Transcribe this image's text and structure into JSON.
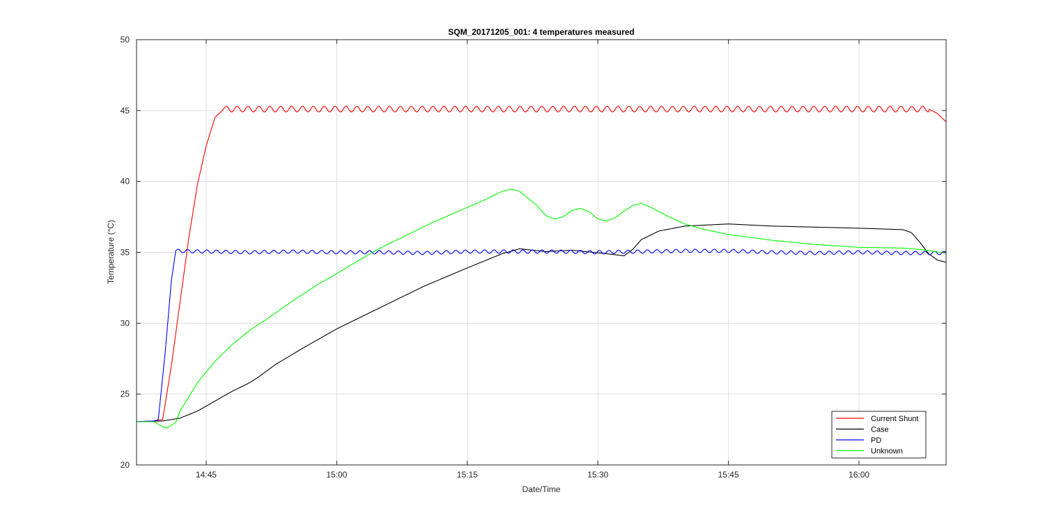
{
  "chart_data": {
    "type": "line",
    "title": "SQM_20171205_001: 4 temperatures measured",
    "xlabel": "Date/Time",
    "ylabel": "Temperature (°C)",
    "x_unit": "time of day (HH:MM)",
    "xlim": [
      "14:37",
      "16:10"
    ],
    "ylim": [
      20,
      50
    ],
    "x_ticks": [
      "14:45",
      "15:00",
      "15:15",
      "15:30",
      "15:45",
      "16:00"
    ],
    "y_ticks": [
      20,
      25,
      30,
      35,
      40,
      45,
      50
    ],
    "grid": true,
    "legend_position": "bottom-right",
    "series": [
      {
        "name": "Current Shunt",
        "color": "#ff0000",
        "oscillation": {
          "from": "14:47",
          "to": "16:08",
          "amplitude": 0.2,
          "period_min": 1.25
        },
        "points": [
          [
            "14:37",
            23.05
          ],
          [
            "14:39",
            23.1
          ],
          [
            "14:40",
            23.2
          ],
          [
            "14:41",
            27.0
          ],
          [
            "14:42",
            31.5
          ],
          [
            "14:43",
            36.0
          ],
          [
            "14:44",
            39.8
          ],
          [
            "14:45",
            42.5
          ],
          [
            "14:46",
            44.5
          ],
          [
            "14:47",
            45.1
          ],
          [
            "15:00",
            45.1
          ],
          [
            "15:15",
            45.1
          ],
          [
            "15:30",
            45.1
          ],
          [
            "15:45",
            45.1
          ],
          [
            "16:00",
            45.1
          ],
          [
            "16:08",
            45.1
          ],
          [
            "16:09",
            44.8
          ],
          [
            "16:10",
            44.2
          ]
        ]
      },
      {
        "name": "Case",
        "color": "#000000",
        "points": [
          [
            "14:37",
            23.05
          ],
          [
            "14:40",
            23.1
          ],
          [
            "14:42",
            23.3
          ],
          [
            "14:44",
            23.8
          ],
          [
            "14:46",
            24.5
          ],
          [
            "14:48",
            25.2
          ],
          [
            "14:50",
            25.8
          ],
          [
            "14:51",
            26.2
          ],
          [
            "14:53",
            27.1
          ],
          [
            "14:56",
            28.2
          ],
          [
            "15:00",
            29.6
          ],
          [
            "15:05",
            31.1
          ],
          [
            "15:10",
            32.6
          ],
          [
            "15:15",
            33.9
          ],
          [
            "15:19",
            34.9
          ],
          [
            "15:21",
            35.25
          ],
          [
            "15:24",
            35.05
          ],
          [
            "15:27",
            35.15
          ],
          [
            "15:31",
            34.9
          ],
          [
            "15:33",
            34.75
          ],
          [
            "15:34",
            35.2
          ],
          [
            "15:35",
            35.9
          ],
          [
            "15:37",
            36.5
          ],
          [
            "15:40",
            36.85
          ],
          [
            "15:45",
            37.0
          ],
          [
            "15:50",
            36.85
          ],
          [
            "16:00",
            36.7
          ],
          [
            "16:05",
            36.6
          ],
          [
            "16:06",
            36.4
          ],
          [
            "16:07",
            35.7
          ],
          [
            "16:08",
            34.9
          ],
          [
            "16:09",
            34.45
          ],
          [
            "16:10",
            34.3
          ]
        ]
      },
      {
        "name": "PD",
        "color": "#0000ff",
        "oscillation": {
          "from": "14:41.5",
          "to": "16:10",
          "amplitude": 0.12,
          "period_min": 1.1
        },
        "points": [
          [
            "14:37",
            23.05
          ],
          [
            "14:39",
            23.1
          ],
          [
            "14:39.5",
            23.2
          ],
          [
            "14:40.3",
            28.0
          ],
          [
            "14:41",
            33.0
          ],
          [
            "14:41.5",
            35.1
          ],
          [
            "14:45",
            35.05
          ],
          [
            "14:50",
            35.0
          ],
          [
            "14:55",
            35.05
          ],
          [
            "15:00",
            35.0
          ],
          [
            "15:05",
            35.0
          ],
          [
            "15:10",
            34.95
          ],
          [
            "15:15",
            35.05
          ],
          [
            "15:20",
            35.05
          ],
          [
            "15:25",
            35.05
          ],
          [
            "15:30",
            35.0
          ],
          [
            "15:35",
            35.05
          ],
          [
            "15:40",
            35.1
          ],
          [
            "15:45",
            35.1
          ],
          [
            "15:50",
            35.0
          ],
          [
            "15:55",
            34.95
          ],
          [
            "16:00",
            35.0
          ],
          [
            "16:05",
            34.95
          ],
          [
            "16:10",
            34.95
          ]
        ]
      },
      {
        "name": "Unknown",
        "color": "#00ff00",
        "points": [
          [
            "14:37",
            23.05
          ],
          [
            "14:39",
            23.05
          ],
          [
            "14:40",
            22.7
          ],
          [
            "14:40.5",
            22.6
          ],
          [
            "14:41.5",
            23.0
          ],
          [
            "14:42",
            23.8
          ],
          [
            "14:44",
            25.8
          ],
          [
            "14:46",
            27.3
          ],
          [
            "14:48",
            28.5
          ],
          [
            "14:50",
            29.5
          ],
          [
            "14:52",
            30.3
          ],
          [
            "14:55",
            31.6
          ],
          [
            "14:58",
            32.8
          ],
          [
            "15:00",
            33.5
          ],
          [
            "15:03",
            34.6
          ],
          [
            "15:05",
            35.3
          ],
          [
            "15:08",
            36.2
          ],
          [
            "15:11",
            37.1
          ],
          [
            "15:14",
            37.9
          ],
          [
            "15:17",
            38.7
          ],
          [
            "15:19",
            39.3
          ],
          [
            "15:20",
            39.45
          ],
          [
            "15:21",
            39.3
          ],
          [
            "15:22",
            38.8
          ],
          [
            "15:23",
            38.3
          ],
          [
            "15:24",
            37.6
          ],
          [
            "15:25",
            37.35
          ],
          [
            "15:26",
            37.5
          ],
          [
            "15:27",
            37.95
          ],
          [
            "15:28",
            38.1
          ],
          [
            "15:29",
            37.85
          ],
          [
            "15:30",
            37.35
          ],
          [
            "15:31",
            37.2
          ],
          [
            "15:32",
            37.45
          ],
          [
            "15:33",
            37.9
          ],
          [
            "15:34",
            38.3
          ],
          [
            "15:35",
            38.45
          ],
          [
            "15:36",
            38.2
          ],
          [
            "15:38",
            37.55
          ],
          [
            "15:40",
            37.0
          ],
          [
            "15:42",
            36.65
          ],
          [
            "15:45",
            36.25
          ],
          [
            "15:50",
            35.85
          ],
          [
            "15:55",
            35.55
          ],
          [
            "16:00",
            35.35
          ],
          [
            "16:05",
            35.3
          ],
          [
            "16:07",
            35.2
          ],
          [
            "16:10",
            34.95
          ]
        ]
      }
    ]
  }
}
